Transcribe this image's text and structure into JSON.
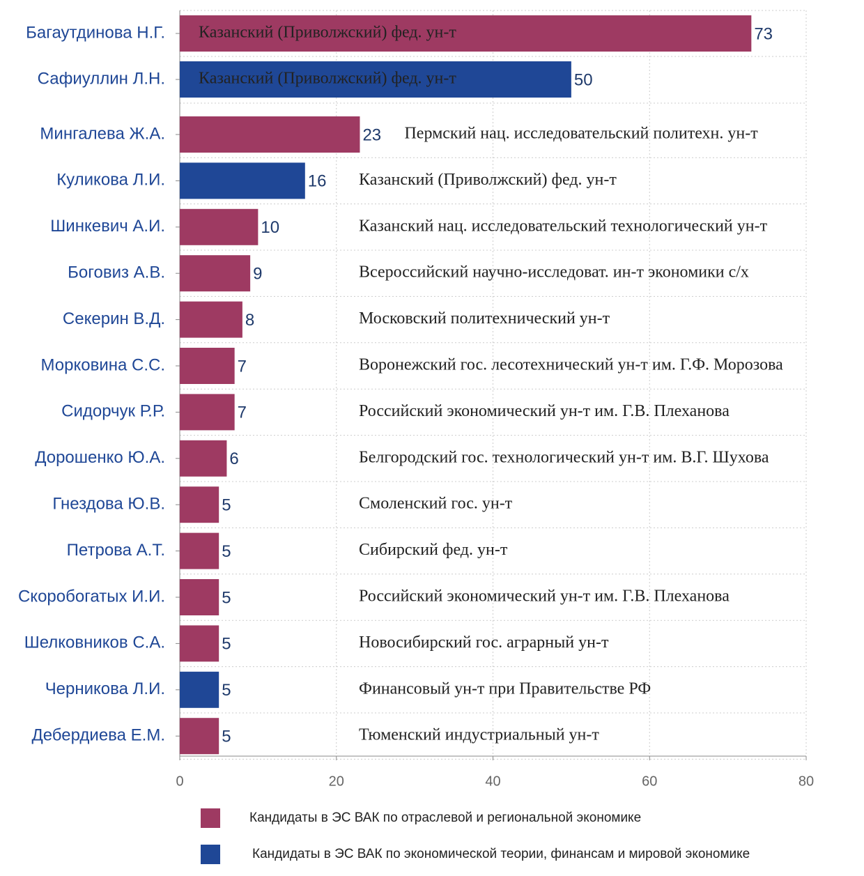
{
  "chart_data": {
    "type": "barh",
    "categories": [
      "Багаутдинова Н.Г.",
      "Сафиуллин Л.Н.",
      "Мингалева Ж.А.",
      "Куликова Л.И.",
      "Шинкевич А.И.",
      "Боговиз А.В.",
      "Секерин В.Д.",
      "Морковина С.С.",
      "Сидорчук Р.Р.",
      "Дорошенко Ю.А.",
      "Гнездова Ю.В.",
      "Петрова А.Т.",
      "Скоробогатых И.И.",
      "Шелковников С.А.",
      "Черникова Л.И.",
      "Дебердиева Е.М."
    ],
    "series": [
      {
        "name": "Кандидаты в ЭС ВАК по отраслевой и региональной экономике",
        "color": "#9e3a62",
        "values": [
          73,
          null,
          23,
          null,
          10,
          9,
          8,
          7,
          7,
          6,
          5,
          5,
          5,
          5,
          null,
          5
        ]
      },
      {
        "name": "Кандидаты в ЭС ВАК по экономической теории, финансам и мировой экономике",
        "color": "#1f4796",
        "values": [
          null,
          50,
          null,
          16,
          null,
          null,
          null,
          null,
          null,
          null,
          null,
          null,
          null,
          null,
          5,
          null
        ]
      }
    ],
    "annotations": [
      "Казанский (Приволжский) фед. ун-т",
      "Казанский (Приволжский) фед. ун-т",
      "Пермский нац. исследовательский политехн. ун-т",
      "Казанский (Приволжский) фед. ун-т",
      "Казанский нац. исследовательский технологический ун-т",
      "Всероссийский научно-исследоват. ин-т экономики с/х",
      "Московский политехнический ун-т",
      "Воронежский гос. лесотехнический ун-т им. Г.Ф. Морозова",
      "Российский экономический ун-т им. Г.В. Плеханова",
      "Белгородский гос. технологический ун-т им. В.Г. Шухова",
      "Смоленский гос. ун-т",
      "Сибирский фед. ун-т",
      "Российский экономический ун-т им. Г.В. Плеханова",
      "Новосибирский гос. аграрный ун-т",
      "Финансовый ун-т при Правительстве РФ",
      "Тюменский индустриальный ун-т"
    ],
    "xlim": [
      0,
      80
    ],
    "xticks": [
      0,
      20,
      40,
      60,
      80
    ],
    "grid": true
  }
}
